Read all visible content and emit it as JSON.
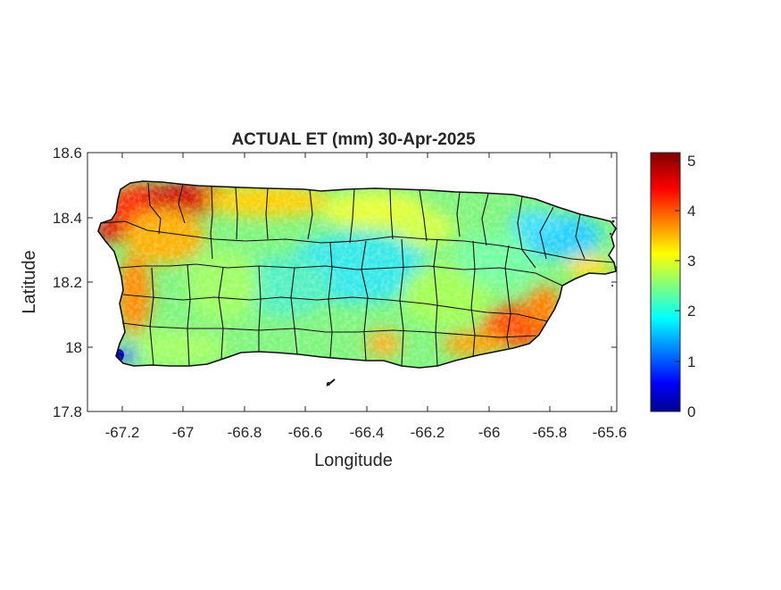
{
  "title": "ACTUAL ET (mm) 30-Apr-2025",
  "xlabel": "Longitude",
  "ylabel": "Latitude",
  "x_ticks": [
    "-67.2",
    "-67",
    "-66.8",
    "-66.6",
    "-66.4",
    "-66.2",
    "-66",
    "-65.8",
    "-65.6"
  ],
  "y_ticks": [
    "18.6",
    "18.4",
    "18.2",
    "18",
    "17.8"
  ],
  "colorbar_ticks": [
    "5",
    "4",
    "3",
    "2",
    "1",
    "0"
  ],
  "colors": {
    "colormap": "jet",
    "axis": "#262626",
    "boundary": "#111111"
  },
  "map_data": {
    "region": "Puerto Rico",
    "variable": "ACTUAL ET (mm)",
    "date": "30-Apr-2025",
    "xlim": [
      -67.3,
      -65.58
    ],
    "ylim": [
      17.8,
      18.6
    ],
    "colorbar_range": [
      0,
      5.2
    ],
    "value_regions": [
      {
        "area": "northwest coast",
        "approx_value": 4.8
      },
      {
        "area": "west coast",
        "approx_value": 4.0
      },
      {
        "area": "southeast coast",
        "approx_value": 4.2
      },
      {
        "area": "central interior",
        "approx_value": 2.2
      },
      {
        "area": "north-central",
        "approx_value": 3.2
      },
      {
        "area": "northeast",
        "approx_value": 2.0
      },
      {
        "area": "south-central coast",
        "approx_value": 3.0
      },
      {
        "area": "southwest corner",
        "approx_value": 1.0
      }
    ]
  }
}
